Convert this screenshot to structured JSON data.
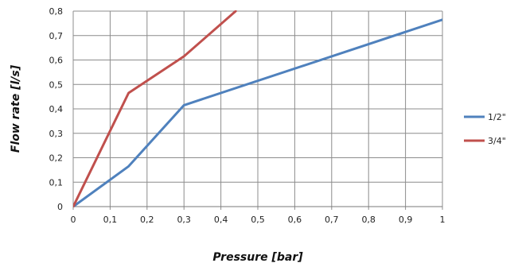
{
  "chart_data": {
    "type": "line",
    "title": "",
    "xlabel": "Pressure [bar]",
    "ylabel": "Flow rate [l/s]",
    "xlim": [
      0,
      1
    ],
    "ylim": [
      0,
      0.8
    ],
    "x_ticks": [
      "0",
      "0,1",
      "0,2",
      "0,3",
      "0,4",
      "0,5",
      "0,6",
      "0,7",
      "0,8",
      "0,9",
      "1"
    ],
    "y_ticks": [
      "0",
      "0,1",
      "0,2",
      "0,3",
      "0,4",
      "0,5",
      "0,6",
      "0,7",
      "0,8"
    ],
    "grid": true,
    "legend_position": "right",
    "series": [
      {
        "name": "1/2\"",
        "color": "#4F81BD",
        "x": [
          0,
          0.15,
          0.3,
          1
        ],
        "y": [
          0,
          0.165,
          0.415,
          0.765
        ]
      },
      {
        "name": "3/4\"",
        "color": "#C0504D",
        "x": [
          0,
          0.15,
          0.3,
          0.44
        ],
        "y": [
          0,
          0.465,
          0.615,
          0.8
        ]
      }
    ]
  }
}
